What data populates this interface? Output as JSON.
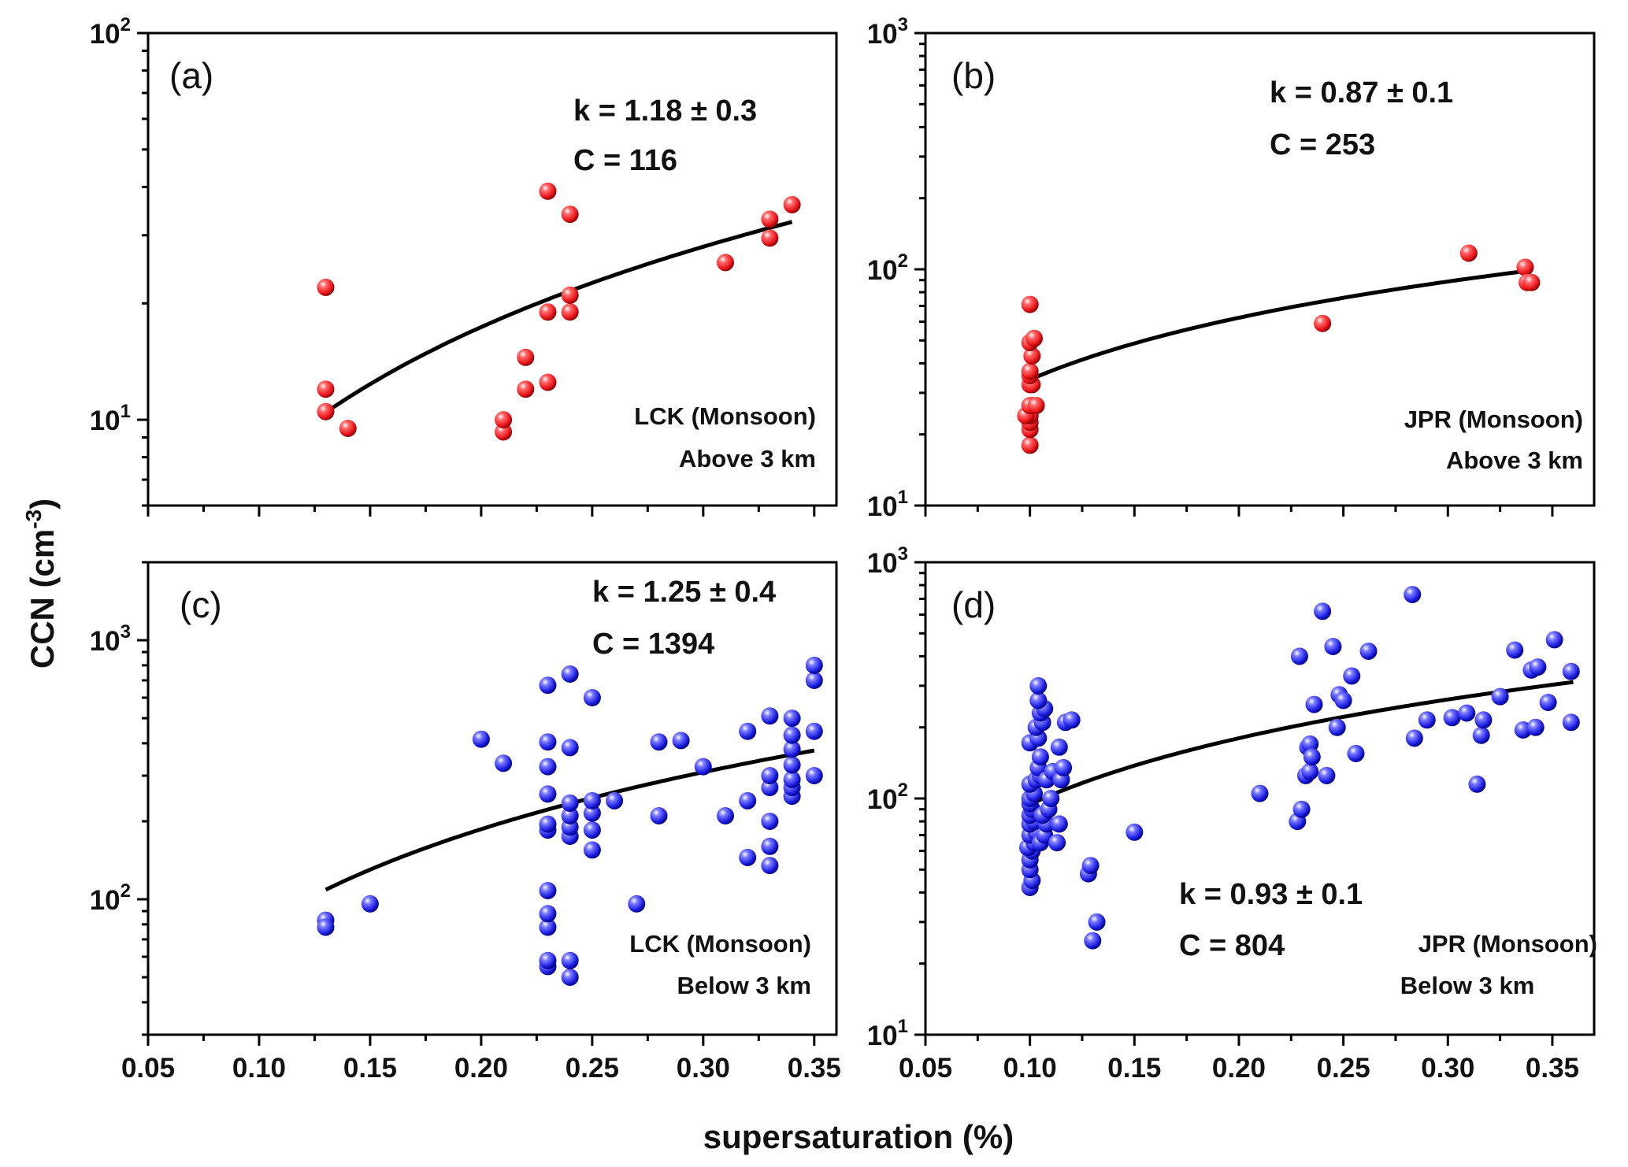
{
  "figure": {
    "ylabel": "CCN (cm",
    "ylabel_exp": "-3",
    "ylabel_close": ")",
    "xlabel": "supersaturation (%)"
  },
  "colors": {
    "red_marker": "#e8141a",
    "blue_marker": "#1d1ee0",
    "fit_line": "#000000",
    "axes": "#000000"
  },
  "x_ticks": [
    "0.05",
    "0.10",
    "0.15",
    "0.20",
    "0.25",
    "0.30",
    "0.35"
  ],
  "chart_data": [
    {
      "type": "scatter",
      "panel": "(a)",
      "site": "LCK (Monsoon)",
      "altitude": "Above 3 km",
      "k_text": "k = 1.18 ± 0.3",
      "c_text": "C = 116",
      "color": "#e8141a",
      "xlim": [
        0.05,
        0.36
      ],
      "ylim": [
        6,
        100
      ],
      "yscale": "log",
      "yticks": [
        {
          "value": 10,
          "base": "10",
          "exp": "1"
        },
        {
          "value": 100,
          "base": "10",
          "exp": "2"
        }
      ],
      "fit": {
        "C": 116,
        "k": 1.18,
        "x_range": [
          0.13,
          0.34
        ]
      },
      "points": [
        [
          0.13,
          22
        ],
        [
          0.13,
          12
        ],
        [
          0.13,
          10.5
        ],
        [
          0.14,
          9.5
        ],
        [
          0.21,
          9.3
        ],
        [
          0.21,
          10
        ],
        [
          0.22,
          12
        ],
        [
          0.22,
          14.5
        ],
        [
          0.23,
          12.5
        ],
        [
          0.23,
          19
        ],
        [
          0.23,
          39
        ],
        [
          0.24,
          19
        ],
        [
          0.24,
          21
        ],
        [
          0.24,
          34
        ],
        [
          0.31,
          25.5
        ],
        [
          0.33,
          29.5
        ],
        [
          0.33,
          33
        ],
        [
          0.34,
          36
        ]
      ]
    },
    {
      "type": "scatter",
      "panel": "(b)",
      "site": "JPR (Monsoon)",
      "altitude": "Above 3 km",
      "k_text": "k = 0.87 ± 0.1",
      "c_text": "C = 253",
      "color": "#e8141a",
      "xlim": [
        0.05,
        0.37
      ],
      "ylim": [
        10,
        1000
      ],
      "yscale": "log",
      "yticks": [
        {
          "value": 10,
          "base": "10",
          "exp": "1"
        },
        {
          "value": 100,
          "base": "10",
          "exp": "2"
        },
        {
          "value": 1000,
          "base": "10",
          "exp": "3"
        }
      ],
      "fit": {
        "C": 253,
        "k": 0.87,
        "x_range": [
          0.1,
          0.34
        ]
      },
      "points": [
        [
          0.1,
          18
        ],
        [
          0.1,
          21
        ],
        [
          0.1,
          22.5
        ],
        [
          0.1,
          24
        ],
        [
          0.098,
          24
        ],
        [
          0.101,
          26.5
        ],
        [
          0.1,
          26.5
        ],
        [
          0.103,
          26.5
        ],
        [
          0.1,
          32.5
        ],
        [
          0.101,
          32.5
        ],
        [
          0.1,
          35.5
        ],
        [
          0.1,
          37
        ],
        [
          0.101,
          43
        ],
        [
          0.1,
          49
        ],
        [
          0.102,
          51
        ],
        [
          0.1,
          71
        ],
        [
          0.24,
          59
        ],
        [
          0.31,
          117
        ],
        [
          0.337,
          102
        ],
        [
          0.338,
          88
        ],
        [
          0.34,
          88
        ]
      ]
    },
    {
      "type": "scatter",
      "panel": "(c)",
      "site": "LCK (Monsoon)",
      "altitude": "Below 3 km",
      "k_text": "k = 1.25 ± 0.4",
      "c_text": "C = 1394",
      "color": "#1d1ee0",
      "xlim": [
        0.05,
        0.36
      ],
      "ylim": [
        30,
        2000
      ],
      "yscale": "log",
      "yticks": [
        {
          "value": 100,
          "base": "10",
          "exp": "2"
        },
        {
          "value": 1000,
          "base": "10",
          "exp": "3"
        }
      ],
      "fit": {
        "C": 1394,
        "k": 1.25,
        "x_range": [
          0.13,
          0.35
        ]
      },
      "points": [
        [
          0.13,
          83
        ],
        [
          0.13,
          78
        ],
        [
          0.15,
          96
        ],
        [
          0.2,
          415
        ],
        [
          0.21,
          335
        ],
        [
          0.23,
          55
        ],
        [
          0.23,
          58
        ],
        [
          0.23,
          78
        ],
        [
          0.23,
          88
        ],
        [
          0.23,
          108
        ],
        [
          0.23,
          185
        ],
        [
          0.23,
          195
        ],
        [
          0.23,
          255
        ],
        [
          0.23,
          325
        ],
        [
          0.23,
          405
        ],
        [
          0.23,
          670
        ],
        [
          0.24,
          50
        ],
        [
          0.24,
          58
        ],
        [
          0.24,
          175
        ],
        [
          0.24,
          190
        ],
        [
          0.24,
          210
        ],
        [
          0.24,
          235
        ],
        [
          0.24,
          385
        ],
        [
          0.24,
          740
        ],
        [
          0.25,
          155
        ],
        [
          0.25,
          185
        ],
        [
          0.25,
          215
        ],
        [
          0.25,
          240
        ],
        [
          0.25,
          600
        ],
        [
          0.26,
          240
        ],
        [
          0.27,
          96
        ],
        [
          0.28,
          210
        ],
        [
          0.28,
          405
        ],
        [
          0.29,
          410
        ],
        [
          0.3,
          325
        ],
        [
          0.31,
          210
        ],
        [
          0.32,
          145
        ],
        [
          0.32,
          240
        ],
        [
          0.32,
          445
        ],
        [
          0.33,
          135
        ],
        [
          0.33,
          160
        ],
        [
          0.33,
          200
        ],
        [
          0.33,
          270
        ],
        [
          0.33,
          300
        ],
        [
          0.33,
          510
        ],
        [
          0.34,
          250
        ],
        [
          0.34,
          270
        ],
        [
          0.34,
          290
        ],
        [
          0.34,
          330
        ],
        [
          0.34,
          380
        ],
        [
          0.34,
          430
        ],
        [
          0.34,
          500
        ],
        [
          0.35,
          300
        ],
        [
          0.35,
          445
        ],
        [
          0.35,
          700
        ],
        [
          0.35,
          800
        ]
      ]
    },
    {
      "type": "scatter",
      "panel": "(d)",
      "site": "JPR (Monsoon)",
      "altitude": "Below 3 km",
      "k_text": "k = 0.93 ± 0.1",
      "c_text": "C = 804",
      "color": "#1d1ee0",
      "xlim": [
        0.05,
        0.37
      ],
      "ylim": [
        10,
        1000
      ],
      "yscale": "log",
      "yticks": [
        {
          "value": 10,
          "base": "10",
          "exp": "1"
        },
        {
          "value": 100,
          "base": "10",
          "exp": "2"
        },
        {
          "value": 1000,
          "base": "10",
          "exp": "3"
        }
      ],
      "fit": {
        "C": 804,
        "k": 0.93,
        "x_range": [
          0.1,
          0.36
        ]
      },
      "points": [
        [
          0.1,
          42
        ],
        [
          0.101,
          45
        ],
        [
          0.1,
          50
        ],
        [
          0.1,
          55
        ],
        [
          0.101,
          60
        ],
        [
          0.099,
          62
        ],
        [
          0.102,
          65
        ],
        [
          0.1,
          70
        ],
        [
          0.103,
          72
        ],
        [
          0.1,
          78
        ],
        [
          0.102,
          80
        ],
        [
          0.1,
          85
        ],
        [
          0.101,
          90
        ],
        [
          0.1,
          95
        ],
        [
          0.1,
          100
        ],
        [
          0.102,
          105
        ],
        [
          0.1,
          115
        ],
        [
          0.103,
          120
        ],
        [
          0.105,
          125
        ],
        [
          0.104,
          135
        ],
        [
          0.105,
          150
        ],
        [
          0.1,
          172
        ],
        [
          0.104,
          180
        ],
        [
          0.103,
          200
        ],
        [
          0.106,
          210
        ],
        [
          0.105,
          230
        ],
        [
          0.107,
          240
        ],
        [
          0.104,
          260
        ],
        [
          0.104,
          300
        ],
        [
          0.105,
          65
        ],
        [
          0.107,
          70
        ],
        [
          0.108,
          78
        ],
        [
          0.106,
          85
        ],
        [
          0.109,
          90
        ],
        [
          0.11,
          100
        ],
        [
          0.108,
          120
        ],
        [
          0.111,
          130
        ],
        [
          0.113,
          65
        ],
        [
          0.114,
          78
        ],
        [
          0.115,
          120
        ],
        [
          0.116,
          135
        ],
        [
          0.114,
          165
        ],
        [
          0.117,
          210
        ],
        [
          0.12,
          215
        ],
        [
          0.128,
          48
        ],
        [
          0.129,
          52
        ],
        [
          0.13,
          25
        ],
        [
          0.132,
          30
        ],
        [
          0.15,
          72
        ],
        [
          0.21,
          105
        ],
        [
          0.228,
          80
        ],
        [
          0.229,
          400
        ],
        [
          0.23,
          90
        ],
        [
          0.232,
          125
        ],
        [
          0.234,
          130
        ],
        [
          0.233,
          165
        ],
        [
          0.234,
          170
        ],
        [
          0.235,
          150
        ],
        [
          0.236,
          250
        ],
        [
          0.24,
          620
        ],
        [
          0.242,
          125
        ],
        [
          0.245,
          440
        ],
        [
          0.247,
          200
        ],
        [
          0.248,
          275
        ],
        [
          0.25,
          260
        ],
        [
          0.254,
          330
        ],
        [
          0.256,
          155
        ],
        [
          0.262,
          420
        ],
        [
          0.283,
          730
        ],
        [
          0.284,
          180
        ],
        [
          0.29,
          215
        ],
        [
          0.302,
          220
        ],
        [
          0.309,
          230
        ],
        [
          0.314,
          115
        ],
        [
          0.316,
          185
        ],
        [
          0.317,
          215
        ],
        [
          0.325,
          270
        ],
        [
          0.332,
          425
        ],
        [
          0.336,
          195
        ],
        [
          0.34,
          350
        ],
        [
          0.343,
          360
        ],
        [
          0.342,
          200
        ],
        [
          0.348,
          255
        ],
        [
          0.351,
          470
        ],
        [
          0.359,
          210
        ],
        [
          0.359,
          345
        ]
      ]
    }
  ]
}
